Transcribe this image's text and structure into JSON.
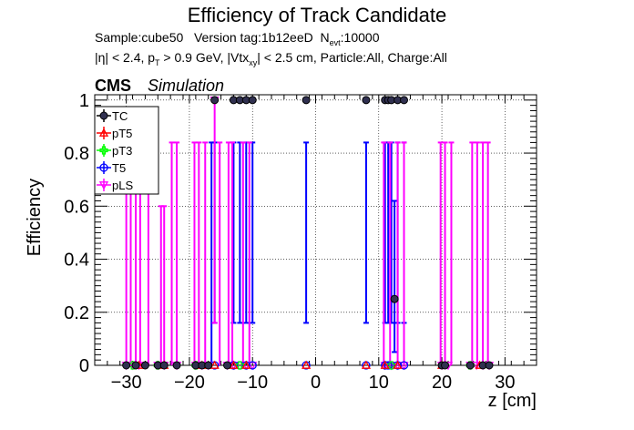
{
  "header": {
    "title": "Efficiency of Track Candidate",
    "sample_label": "Sample:cube50",
    "version_label": "Version tag:1b12eeD",
    "nevt_label": "N",
    "nevt_sub": "evt",
    "nevt_value": ":10000",
    "cut_eta": "|η| < 2.4, p",
    "cut_pt_sub": "T",
    "cut_pt": " > 0.9 GeV, |Vtx",
    "cut_vtx_sub": "xy",
    "cut_rest": "| < 2.5 cm, Particle:All, Charge:All",
    "cms": "CMS",
    "simulation": "Simulation"
  },
  "colors": {
    "TC": "#000000",
    "pT5": "#ff0000",
    "pT3": "#00ff00",
    "T5": "#0000ff",
    "pLS": "#ff00ff",
    "TC_fill": "#303050"
  },
  "chart_data": {
    "type": "scatter",
    "xlabel": "z [cm]",
    "ylabel": "Efficiency",
    "xlim": [
      -35,
      35
    ],
    "ylim": [
      0,
      1.02
    ],
    "x_ticks": [
      -30,
      -20,
      -10,
      0,
      10,
      20,
      30
    ],
    "x_tick_labels": [
      "−30",
      "−20",
      "−10",
      "0",
      "10",
      "20",
      "30"
    ],
    "y_ticks": [
      0,
      0.2,
      0.4,
      0.6,
      0.8,
      1
    ],
    "y_tick_labels": [
      "0",
      "0.2",
      "0.4",
      "0.6",
      "0.8",
      "1"
    ],
    "grid": true,
    "legend_position": "top-left",
    "legend": [
      "TC",
      "pT5",
      "pT3",
      "T5",
      "pLS"
    ],
    "series": [
      {
        "name": "TC",
        "points": [
          {
            "x": -16,
            "y": 1
          },
          {
            "x": -13,
            "y": 1
          },
          {
            "x": -12,
            "y": 1
          },
          {
            "x": -11,
            "y": 1
          },
          {
            "x": -10,
            "y": 1
          },
          {
            "x": -1.5,
            "y": 1
          },
          {
            "x": 8,
            "y": 1
          },
          {
            "x": 11,
            "y": 1
          },
          {
            "x": 11.5,
            "y": 1
          },
          {
            "x": 12,
            "y": 1
          },
          {
            "x": 13,
            "y": 1
          },
          {
            "x": 14,
            "y": 1
          },
          {
            "x": 12.5,
            "y": 0.25
          },
          {
            "x": -30,
            "y": 0
          },
          {
            "x": -28.5,
            "y": 0
          },
          {
            "x": -27,
            "y": 0
          },
          {
            "x": -25,
            "y": 0
          },
          {
            "x": -24,
            "y": 0
          },
          {
            "x": -22,
            "y": 0
          },
          {
            "x": -19,
            "y": 0
          },
          {
            "x": -18,
            "y": 0
          },
          {
            "x": -17,
            "y": 0
          },
          {
            "x": -14,
            "y": 0
          },
          {
            "x": 20,
            "y": 0
          },
          {
            "x": 20.5,
            "y": 0
          },
          {
            "x": 24.5,
            "y": 0
          },
          {
            "x": 26.5,
            "y": 0
          },
          {
            "x": 27.5,
            "y": 0
          }
        ]
      },
      {
        "name": "pT5",
        "points": [
          {
            "x": -28,
            "y": 0
          },
          {
            "x": -24,
            "y": 0
          },
          {
            "x": -18,
            "y": 0
          },
          {
            "x": -16,
            "y": 0
          },
          {
            "x": -13,
            "y": 0
          },
          {
            "x": -11,
            "y": 0
          },
          {
            "x": -1.5,
            "y": 0
          },
          {
            "x": 8,
            "y": 0
          },
          {
            "x": 11,
            "y": 0
          },
          {
            "x": 13,
            "y": 0
          },
          {
            "x": 20,
            "y": 0
          },
          {
            "x": 26,
            "y": 0
          }
        ]
      },
      {
        "name": "pT3",
        "points": [
          {
            "x": -29,
            "y": 0
          },
          {
            "x": -25,
            "y": 0
          },
          {
            "x": -19,
            "y": 0
          },
          {
            "x": -12,
            "y": 0
          },
          {
            "x": 12,
            "y": 0
          },
          {
            "x": 24.5,
            "y": 0
          }
        ]
      },
      {
        "name": "T5",
        "points": [
          {
            "x": -16,
            "y": 0
          },
          {
            "x": -13,
            "y": 0
          },
          {
            "x": -12,
            "y": 0
          },
          {
            "x": -11,
            "y": 0
          },
          {
            "x": -10,
            "y": 0
          },
          {
            "x": -1.5,
            "y": 0
          },
          {
            "x": 8,
            "y": 0
          },
          {
            "x": 11,
            "y": 0
          },
          {
            "x": 11.5,
            "y": 0
          },
          {
            "x": 12,
            "y": 0
          },
          {
            "x": 13,
            "y": 0
          },
          {
            "x": 14,
            "y": 0
          }
        ],
        "error_bars": [
          {
            "x": -16,
            "low": 0.16,
            "high": 0.84
          },
          {
            "x": -13,
            "low": 0.16,
            "high": 0.84
          },
          {
            "x": -12,
            "low": 0.16,
            "high": 0.84
          },
          {
            "x": -11,
            "low": 0.16,
            "high": 0.84
          },
          {
            "x": -10,
            "low": 0.16,
            "high": 0.84
          },
          {
            "x": -1.5,
            "low": 0.16,
            "high": 0.84
          },
          {
            "x": 8,
            "low": 0.16,
            "high": 0.84
          },
          {
            "x": 11,
            "low": 0.16,
            "high": 0.84
          },
          {
            "x": 11.5,
            "low": 0.16,
            "high": 0.84
          },
          {
            "x": 12,
            "low": 0.16,
            "high": 0.84
          },
          {
            "x": 13,
            "low": 0.16,
            "high": 0.84
          },
          {
            "x": 14,
            "low": 0.16,
            "high": 0.84
          },
          {
            "x": 12.5,
            "low": 0.05,
            "high": 0.62
          },
          {
            "x": -16.5,
            "low": 0,
            "high": 0.84
          }
        ]
      },
      {
        "name": "pLS",
        "points": [
          {
            "x": -30,
            "y": 0
          },
          {
            "x": -29,
            "y": 0
          },
          {
            "x": -28,
            "y": 0
          },
          {
            "x": -25,
            "y": 0
          },
          {
            "x": -24,
            "y": 0
          },
          {
            "x": -22,
            "y": 0
          },
          {
            "x": -19,
            "y": 0
          },
          {
            "x": -18,
            "y": 0
          },
          {
            "x": -17,
            "y": 0
          },
          {
            "x": -16,
            "y": 1
          },
          {
            "x": -14,
            "y": 0
          },
          {
            "x": -13,
            "y": 0
          },
          {
            "x": -11,
            "y": 0
          },
          {
            "x": -10,
            "y": 0
          },
          {
            "x": 11,
            "y": 0
          },
          {
            "x": 12,
            "y": 0
          },
          {
            "x": 13,
            "y": 0
          },
          {
            "x": 14,
            "y": 0
          },
          {
            "x": 20,
            "y": 0
          },
          {
            "x": 21,
            "y": 0
          },
          {
            "x": 24.5,
            "y": 0
          },
          {
            "x": 25.5,
            "y": 0
          },
          {
            "x": 26.5,
            "y": 0
          },
          {
            "x": 27.5,
            "y": 0
          }
        ],
        "error_bars": [
          {
            "x": -30,
            "low": 0,
            "high": 0.84
          },
          {
            "x": -29.3,
            "low": 0,
            "high": 0.84
          },
          {
            "x": -28.5,
            "low": 0,
            "high": 0.84
          },
          {
            "x": -27.8,
            "low": 0,
            "high": 0.84
          },
          {
            "x": -26.5,
            "low": 0,
            "high": 0.84
          },
          {
            "x": -24.5,
            "low": 0,
            "high": 0.6
          },
          {
            "x": -24,
            "low": 0,
            "high": 0.6
          },
          {
            "x": -22.8,
            "low": 0,
            "high": 0.84
          },
          {
            "x": -22,
            "low": 0,
            "high": 0.84
          },
          {
            "x": -19.2,
            "low": 0,
            "high": 0.84
          },
          {
            "x": -18.5,
            "low": 0,
            "high": 0.84
          },
          {
            "x": -17.5,
            "low": 0,
            "high": 0.84
          },
          {
            "x": -16,
            "low": 0.16,
            "high": 1
          },
          {
            "x": -15.2,
            "low": 0,
            "high": 0.84
          },
          {
            "x": -13.8,
            "low": 0,
            "high": 0.84
          },
          {
            "x": -13.2,
            "low": 0,
            "high": 0.84
          },
          {
            "x": -11.5,
            "low": 0,
            "high": 0.84
          },
          {
            "x": -10.5,
            "low": 0,
            "high": 0.84
          },
          {
            "x": 10.8,
            "low": 0,
            "high": 0.84
          },
          {
            "x": 11.8,
            "low": 0,
            "high": 0.84
          },
          {
            "x": 13,
            "low": 0,
            "high": 0.84
          },
          {
            "x": 14,
            "low": 0,
            "high": 0.84
          },
          {
            "x": 19.8,
            "low": 0,
            "high": 0.84
          },
          {
            "x": 20.5,
            "low": 0,
            "high": 0.84
          },
          {
            "x": 21.5,
            "low": 0,
            "high": 0.84
          },
          {
            "x": 24.8,
            "low": 0,
            "high": 0.84
          },
          {
            "x": 25.6,
            "low": 0,
            "high": 0.84
          },
          {
            "x": 26.5,
            "low": 0,
            "high": 0.84
          },
          {
            "x": 27.3,
            "low": 0,
            "high": 0.84
          }
        ]
      }
    ]
  }
}
